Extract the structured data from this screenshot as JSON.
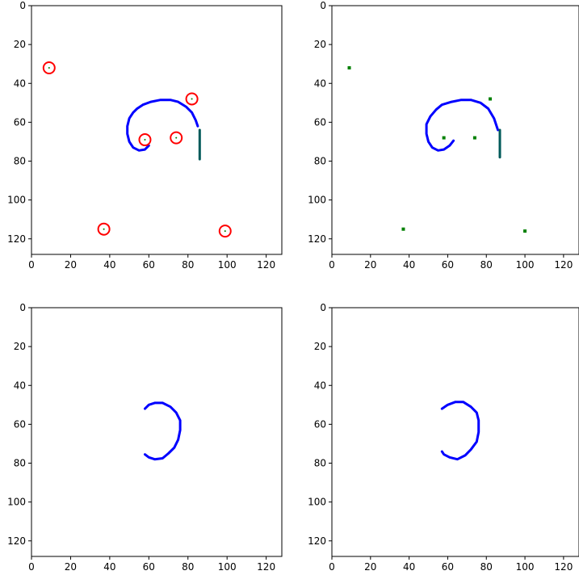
{
  "figure": {
    "background": "#ffffff",
    "axis_color": "#000000"
  },
  "chart_data": [
    {
      "type": "image",
      "panel": "top-left",
      "xlim": [
        0,
        128
      ],
      "ylim": [
        128,
        0
      ],
      "xticks": [
        0,
        20,
        40,
        60,
        80,
        100,
        120
      ],
      "yticks": [
        0,
        20,
        40,
        60,
        80,
        100,
        120
      ],
      "title": "",
      "xlabel": "",
      "ylabel": "",
      "curves": [
        {
          "color": "#0000ff",
          "points": [
            [
              85,
              62
            ],
            [
              84,
              59
            ],
            [
              82,
              55
            ],
            [
              79,
              52
            ],
            [
              75,
              49.5
            ],
            [
              71,
              48.5
            ],
            [
              66,
              48.5
            ],
            [
              61,
              49.5
            ],
            [
              57,
              51
            ],
            [
              54,
              53
            ],
            [
              52,
              55
            ],
            [
              50,
              58
            ],
            [
              49,
              62
            ],
            [
              49,
              66
            ],
            [
              50,
              70
            ],
            [
              52,
              73
            ],
            [
              55,
              74.5
            ],
            [
              58,
              74
            ],
            [
              60,
              72
            ]
          ]
        },
        {
          "color": "#005a5a",
          "points": [
            [
              86,
              64
            ],
            [
              86,
              79
            ]
          ]
        }
      ],
      "markers": [
        {
          "x": 9,
          "y": 32,
          "color": "#ff0000",
          "shape": "circle"
        },
        {
          "x": 82,
          "y": 48,
          "color": "#ff0000",
          "shape": "circle"
        },
        {
          "x": 58,
          "y": 69,
          "color": "#ff0000",
          "shape": "circle"
        },
        {
          "x": 74,
          "y": 68,
          "color": "#ff0000",
          "shape": "circle"
        },
        {
          "x": 37,
          "y": 115,
          "color": "#ff0000",
          "shape": "circle"
        },
        {
          "x": 99,
          "y": 116,
          "color": "#ff0000",
          "shape": "circle"
        }
      ],
      "dots": []
    },
    {
      "type": "image",
      "panel": "top-right",
      "xlim": [
        0,
        128
      ],
      "ylim": [
        128,
        0
      ],
      "xticks": [
        0,
        20,
        40,
        60,
        80,
        100,
        120
      ],
      "yticks": [
        0,
        20,
        40,
        60,
        80,
        100,
        120
      ],
      "title": "",
      "xlabel": "",
      "ylabel": "",
      "curves": [
        {
          "color": "#0000ff",
          "points": [
            [
              86,
              64
            ],
            [
              84,
              58
            ],
            [
              81,
              53
            ],
            [
              77,
              50
            ],
            [
              72,
              48.5
            ],
            [
              67,
              48.5
            ],
            [
              62,
              49.5
            ],
            [
              57,
              51
            ],
            [
              54,
              53.5
            ],
            [
              51,
              57
            ],
            [
              49,
              61
            ],
            [
              49,
              66
            ],
            [
              50,
              70
            ],
            [
              52,
              73
            ],
            [
              55,
              74.5
            ],
            [
              58,
              74
            ],
            [
              61,
              72
            ],
            [
              63,
              69.5
            ]
          ]
        },
        {
          "color": "#005a5a",
          "points": [
            [
              87,
              64
            ],
            [
              87,
              78
            ]
          ]
        }
      ],
      "markers": [],
      "dots": [
        {
          "x": 9,
          "y": 32,
          "color": "#008000"
        },
        {
          "x": 82,
          "y": 48,
          "color": "#008000"
        },
        {
          "x": 58,
          "y": 68,
          "color": "#008000"
        },
        {
          "x": 74,
          "y": 68,
          "color": "#008000"
        },
        {
          "x": 37,
          "y": 115,
          "color": "#008000"
        },
        {
          "x": 100,
          "y": 116,
          "color": "#008000"
        }
      ]
    },
    {
      "type": "image",
      "panel": "bottom-left",
      "xlim": [
        0,
        128
      ],
      "ylim": [
        128,
        0
      ],
      "xticks": [
        0,
        20,
        40,
        60,
        80,
        100,
        120
      ],
      "yticks": [
        0,
        20,
        40,
        60,
        80,
        100,
        120
      ],
      "title": "",
      "xlabel": "",
      "ylabel": "",
      "curves": [
        {
          "color": "#0000ff",
          "points": [
            [
              58,
              52
            ],
            [
              60,
              50
            ],
            [
              63,
              49
            ],
            [
              67,
              49
            ],
            [
              71,
              51
            ],
            [
              74,
              54
            ],
            [
              76,
              58
            ],
            [
              76,
              63
            ],
            [
              75,
              68
            ],
            [
              73,
              72
            ],
            [
              70,
              75
            ],
            [
              67,
              77.5
            ],
            [
              63,
              78
            ],
            [
              60,
              77
            ],
            [
              58,
              75.5
            ]
          ]
        }
      ],
      "markers": [],
      "dots": []
    },
    {
      "type": "image",
      "panel": "bottom-right",
      "xlim": [
        0,
        128
      ],
      "ylim": [
        128,
        0
      ],
      "xticks": [
        0,
        20,
        40,
        60,
        80,
        100,
        120
      ],
      "yticks": [
        0,
        20,
        40,
        60,
        80,
        100,
        120
      ],
      "title": "",
      "xlabel": "",
      "ylabel": "",
      "curves": [
        {
          "color": "#0000ff",
          "points": [
            [
              57,
              52
            ],
            [
              60,
              50
            ],
            [
              64,
              48.5
            ],
            [
              68,
              48.5
            ],
            [
              72,
              51
            ],
            [
              75,
              54
            ],
            [
              76,
              58
            ],
            [
              76,
              64
            ],
            [
              75,
              69
            ],
            [
              72,
              73
            ],
            [
              69,
              76
            ],
            [
              65,
              78
            ],
            [
              61,
              77
            ],
            [
              58,
              75.5
            ],
            [
              57,
              74
            ]
          ]
        }
      ],
      "markers": [],
      "dots": []
    }
  ]
}
